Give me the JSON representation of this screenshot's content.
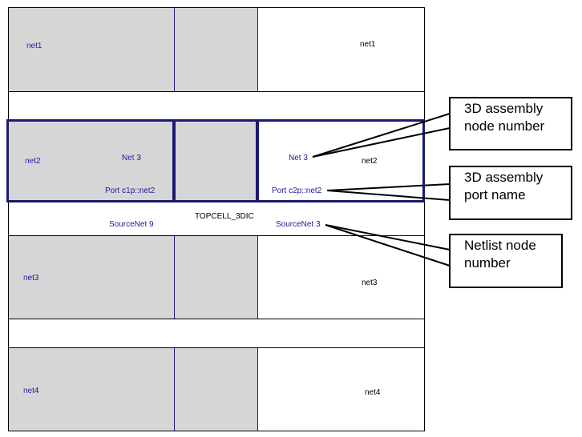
{
  "rows": {
    "row1": {
      "left_label": "net1",
      "right_label": "net1"
    },
    "row2": {
      "left_label": "net2",
      "left_net": "Net 3",
      "left_port": "Port c1p::net2",
      "right_net": "Net 3",
      "right_label": "net2",
      "right_port": "Port c2p::net2"
    },
    "gap": {
      "title": "TOPCELL_3DIC",
      "source_left": "SourceNet 9",
      "source_right": "SourceNet 3"
    },
    "row3": {
      "left_label": "net3",
      "right_label": "net3"
    },
    "row4": {
      "left_label": "net4",
      "right_label": "net4"
    }
  },
  "callouts": [
    {
      "lines": [
        "3D assembly",
        "node number"
      ]
    },
    {
      "lines": [
        "3D assembly",
        "port name"
      ]
    },
    {
      "lines": [
        "Netlist node",
        "number"
      ]
    }
  ],
  "colors": {
    "highlight": "#1a1a6e",
    "label_blue": "#1a1a9c",
    "dots": "#8a8a8a"
  }
}
